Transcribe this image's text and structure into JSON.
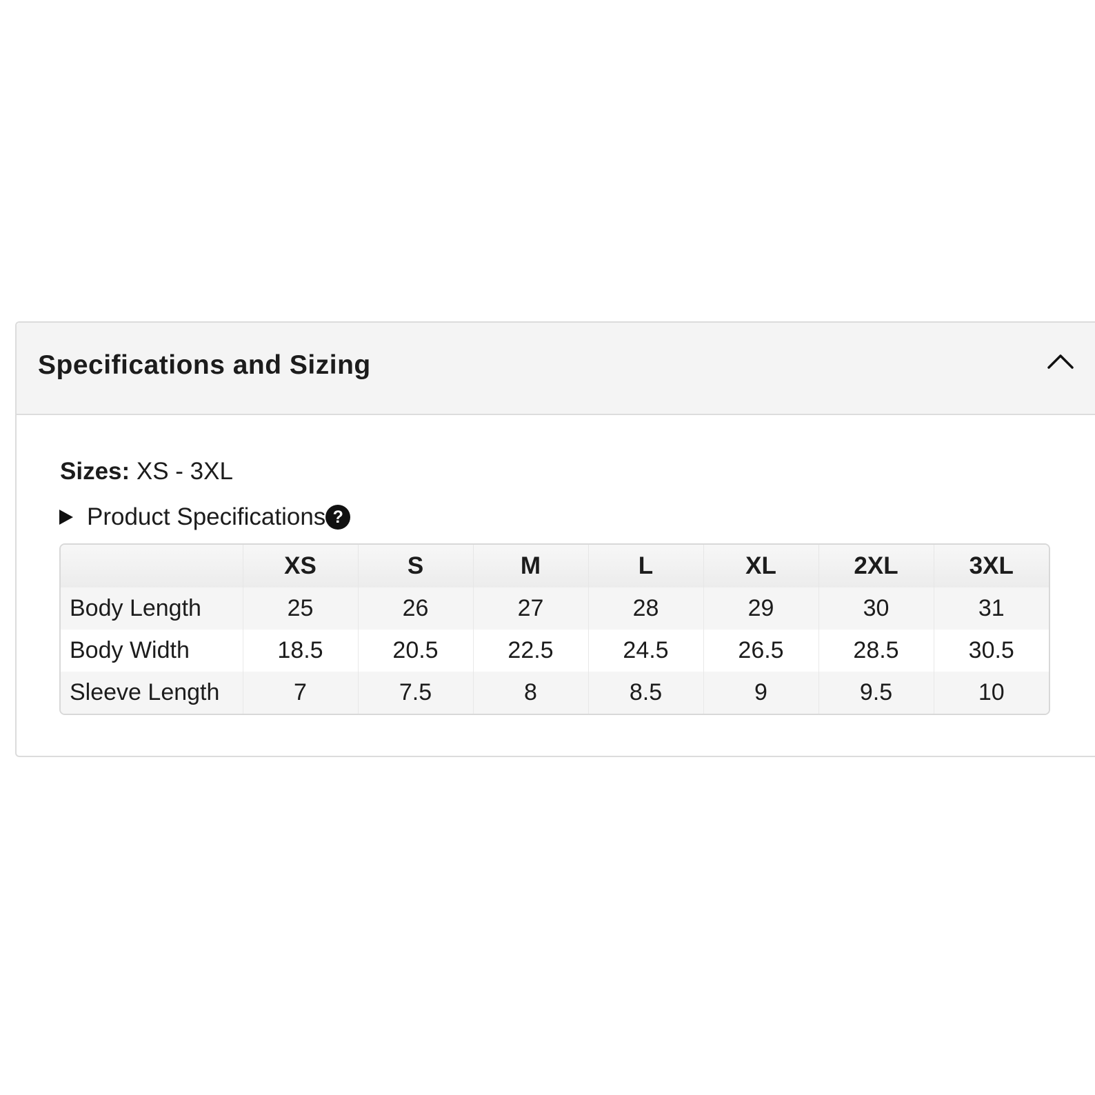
{
  "panel": {
    "title": "Specifications and Sizing",
    "collapse_icon": "chevron-up-icon"
  },
  "sizes": {
    "label": "Sizes:",
    "value": " XS - 3XL"
  },
  "product_specs": {
    "toggle_icon": "triangle-right-icon",
    "label": "Product Specifications",
    "help_icon": "question-circle-icon",
    "help_glyph": "?"
  },
  "size_table": {
    "headers": [
      "",
      "XS",
      "S",
      "M",
      "L",
      "XL",
      "2XL",
      "3XL"
    ],
    "rows": [
      {
        "label": "Body Length",
        "values": [
          "25",
          "26",
          "27",
          "28",
          "29",
          "30",
          "31"
        ]
      },
      {
        "label": "Body Width",
        "values": [
          "18.5",
          "20.5",
          "22.5",
          "24.5",
          "26.5",
          "28.5",
          "30.5"
        ]
      },
      {
        "label": "Sleeve Length",
        "values": [
          "7",
          "7.5",
          "8",
          "8.5",
          "9",
          "9.5",
          "10"
        ]
      }
    ]
  },
  "colors": {
    "header_bg": "#f4f4f4",
    "border": "#dcdcdc",
    "text": "#1c1c1c",
    "stripe": "#f5f5f5"
  }
}
